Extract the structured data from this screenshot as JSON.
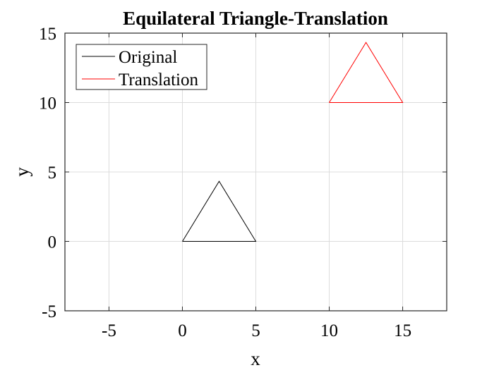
{
  "chart_data": {
    "type": "line",
    "title": "Equilateral Triangle-Translation",
    "xlabel": "x",
    "ylabel": "y",
    "xlim": [
      -8,
      18
    ],
    "ylim": [
      -5,
      15
    ],
    "xticks": [
      -5,
      0,
      5,
      10,
      15
    ],
    "yticks": [
      -5,
      0,
      5,
      10,
      15
    ],
    "xtick_labels": [
      "-5",
      "0",
      "5",
      "10",
      "15"
    ],
    "ytick_labels": [
      "-5",
      "0",
      "5",
      "10",
      "15"
    ],
    "grid": true,
    "legend_position": "top-left",
    "series": [
      {
        "name": "Original",
        "color": "#000000",
        "x": [
          0,
          5,
          2.5,
          0
        ],
        "y": [
          0,
          0,
          4.33,
          0
        ]
      },
      {
        "name": "Translation",
        "color": "#ff0000",
        "x": [
          10,
          15,
          12.5,
          10
        ],
        "y": [
          10,
          10,
          14.33,
          10
        ]
      }
    ]
  }
}
